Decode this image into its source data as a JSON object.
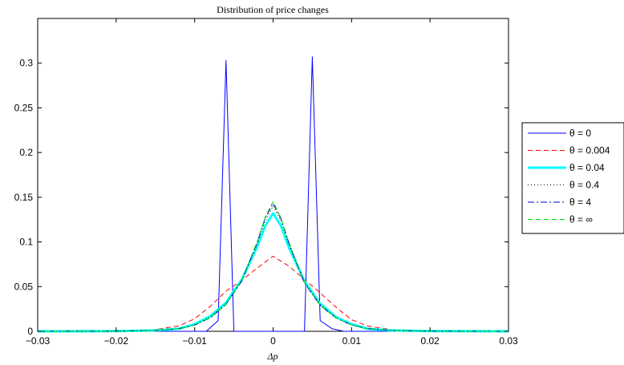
{
  "chart_data": {
    "type": "line",
    "title": "Distribution of price changes",
    "xlabel": "Δp",
    "ylabel": "",
    "xlim": [
      -0.03,
      0.03
    ],
    "ylim": [
      0,
      0.35
    ],
    "xticks": [
      -0.03,
      -0.02,
      -0.01,
      0,
      0.01,
      0.02,
      0.03
    ],
    "xtick_labels": [
      "−0.03",
      "−0.02",
      "−0.01",
      "0",
      "0.01",
      "0.02",
      "0.03"
    ],
    "yticks": [
      0,
      0.05,
      0.1,
      0.15,
      0.2,
      0.25,
      0.3
    ],
    "ytick_labels": [
      "0",
      "0.05",
      "0.1",
      "0.15",
      "0.2",
      "0.25",
      "0.3"
    ],
    "grid": false,
    "legend_position": "outside-right",
    "series": [
      {
        "name": "θ = 0",
        "color": "#0000ff",
        "dash": "solid",
        "width": 1,
        "x": [
          -0.03,
          -0.01,
          -0.0085,
          -0.007,
          -0.006,
          -0.005,
          -0.0049,
          0.0039,
          0.004,
          0.005,
          0.006,
          0.0075,
          0.009,
          0.01,
          0.03
        ],
        "y": [
          0,
          0,
          0.0,
          0.012,
          0.303,
          0.0,
          0,
          0,
          0.0,
          0.307,
          0.012,
          0.003,
          0.0,
          0,
          0
        ]
      },
      {
        "name": "θ = 0.004",
        "color": "#ff0000",
        "dash": "6,4",
        "width": 1,
        "x": [
          -0.03,
          -0.02,
          -0.015,
          -0.012,
          -0.01,
          -0.008,
          -0.006,
          -0.004,
          -0.002,
          0,
          0.002,
          0.004,
          0.006,
          0.008,
          0.01,
          0.012,
          0.015,
          0.02,
          0.03
        ],
        "y": [
          0,
          0.0003,
          0.002,
          0.006,
          0.014,
          0.028,
          0.045,
          0.057,
          0.071,
          0.084,
          0.073,
          0.058,
          0.043,
          0.027,
          0.013,
          0.006,
          0.002,
          0.0003,
          0
        ]
      },
      {
        "name": "θ = 0.04",
        "color": "#00ffff",
        "dash": "solid",
        "width": 3,
        "x": [
          -0.03,
          -0.02,
          -0.015,
          -0.012,
          -0.01,
          -0.008,
          -0.006,
          -0.004,
          -0.002,
          -0.001,
          0,
          0.001,
          0.002,
          0.004,
          0.006,
          0.008,
          0.01,
          0.012,
          0.015,
          0.02,
          0.03
        ],
        "y": [
          0,
          0.0002,
          0.001,
          0.003,
          0.008,
          0.017,
          0.032,
          0.058,
          0.095,
          0.118,
          0.132,
          0.118,
          0.094,
          0.056,
          0.031,
          0.016,
          0.008,
          0.003,
          0.001,
          0.0002,
          0
        ]
      },
      {
        "name": "θ = 0.4",
        "color": "#000000",
        "dash": "1,3",
        "width": 1,
        "x": [
          -0.03,
          -0.02,
          -0.015,
          -0.012,
          -0.01,
          -0.008,
          -0.006,
          -0.004,
          -0.002,
          -0.001,
          0,
          0.001,
          0.002,
          0.004,
          0.006,
          0.008,
          0.01,
          0.012,
          0.015,
          0.02,
          0.03
        ],
        "y": [
          0,
          0.0002,
          0.001,
          0.003,
          0.007,
          0.016,
          0.031,
          0.057,
          0.098,
          0.124,
          0.14,
          0.124,
          0.097,
          0.055,
          0.03,
          0.015,
          0.007,
          0.003,
          0.001,
          0.0002,
          0
        ]
      },
      {
        "name": "θ = 4",
        "color": "#0000cc",
        "dash": "8,3,2,3",
        "width": 1,
        "x": [
          -0.03,
          -0.02,
          -0.015,
          -0.012,
          -0.01,
          -0.008,
          -0.006,
          -0.004,
          -0.002,
          -0.001,
          0,
          0.001,
          0.002,
          0.004,
          0.006,
          0.008,
          0.01,
          0.012,
          0.015,
          0.02,
          0.03
        ],
        "y": [
          0,
          0.0002,
          0.001,
          0.003,
          0.007,
          0.015,
          0.03,
          0.056,
          0.1,
          0.127,
          0.143,
          0.126,
          0.099,
          0.054,
          0.029,
          0.015,
          0.007,
          0.003,
          0.001,
          0.0002,
          0
        ]
      },
      {
        "name": "θ = ∞",
        "color": "#00dd00",
        "dash": "6,4",
        "width": 1,
        "x": [
          -0.03,
          -0.02,
          -0.015,
          -0.012,
          -0.01,
          -0.008,
          -0.006,
          -0.004,
          -0.002,
          -0.001,
          0,
          0.001,
          0.002,
          0.004,
          0.006,
          0.008,
          0.01,
          0.012,
          0.015,
          0.02,
          0.03
        ],
        "y": [
          0,
          0.0002,
          0.001,
          0.003,
          0.007,
          0.015,
          0.03,
          0.057,
          0.101,
          0.128,
          0.145,
          0.127,
          0.1,
          0.055,
          0.029,
          0.015,
          0.007,
          0.003,
          0.001,
          0.0002,
          0
        ]
      }
    ]
  }
}
